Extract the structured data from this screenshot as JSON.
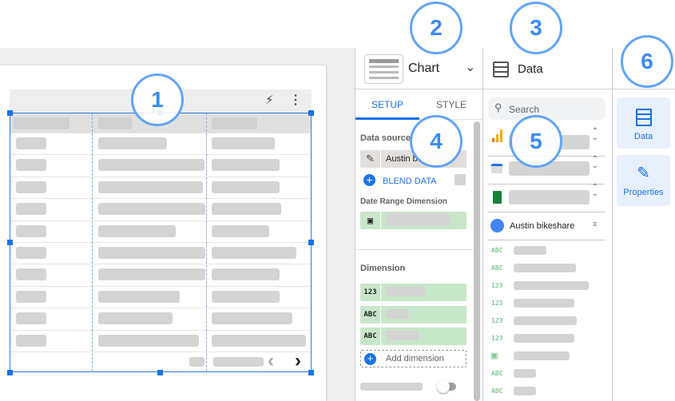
{
  "chart_panel": {
    "title": "Chart",
    "tabs": [
      "SETUP",
      "STYLE"
    ],
    "active_tab": "SETUP",
    "data_source_label": "Data source",
    "data_source_value": "Austin b",
    "blend_data": "BLEND DATA",
    "date_range_label": "Date Range Dimension",
    "dimension_label": "Dimension",
    "dimension_types": [
      "123",
      "ABC",
      "ABC"
    ],
    "add_dimension": "Add dimension"
  },
  "data_panel": {
    "title": "Data",
    "search_placeholder": "Search",
    "sources": [
      "analytics",
      "ads",
      "sheets",
      "Austin bikeshare"
    ],
    "expanded_source": "Austin bikeshare",
    "field_types": [
      "ABC",
      "ABC",
      "123",
      "123",
      "123",
      "123",
      "date",
      "ABC",
      "ABC"
    ]
  },
  "side_nav": {
    "items": [
      "Data",
      "Properties"
    ],
    "active": "Data"
  },
  "callouts": [
    "1",
    "2",
    "3",
    "4",
    "5",
    "6"
  ],
  "colors": {
    "accent": "#1a73e8",
    "dimension": "#c8e6c9",
    "callout": "#62a4f8"
  }
}
